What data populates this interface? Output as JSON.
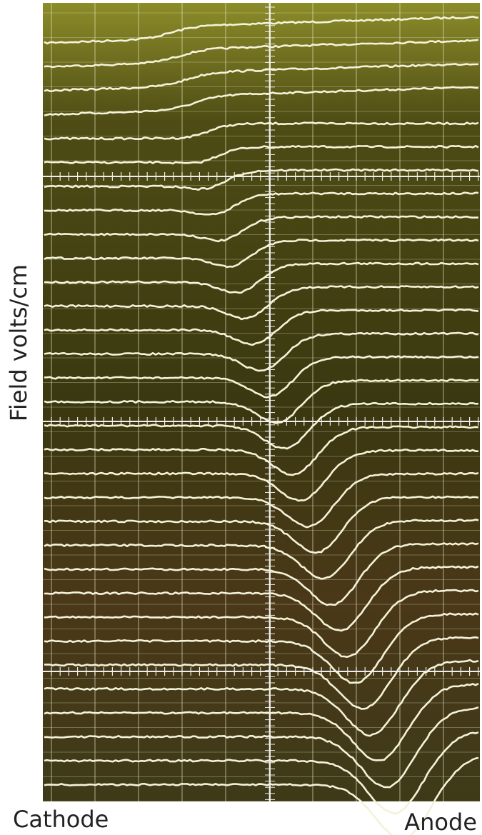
{
  "figure": {
    "y_label": "Field volts/cm",
    "left_label": "Cathode",
    "right_label": "Anode"
  }
}
